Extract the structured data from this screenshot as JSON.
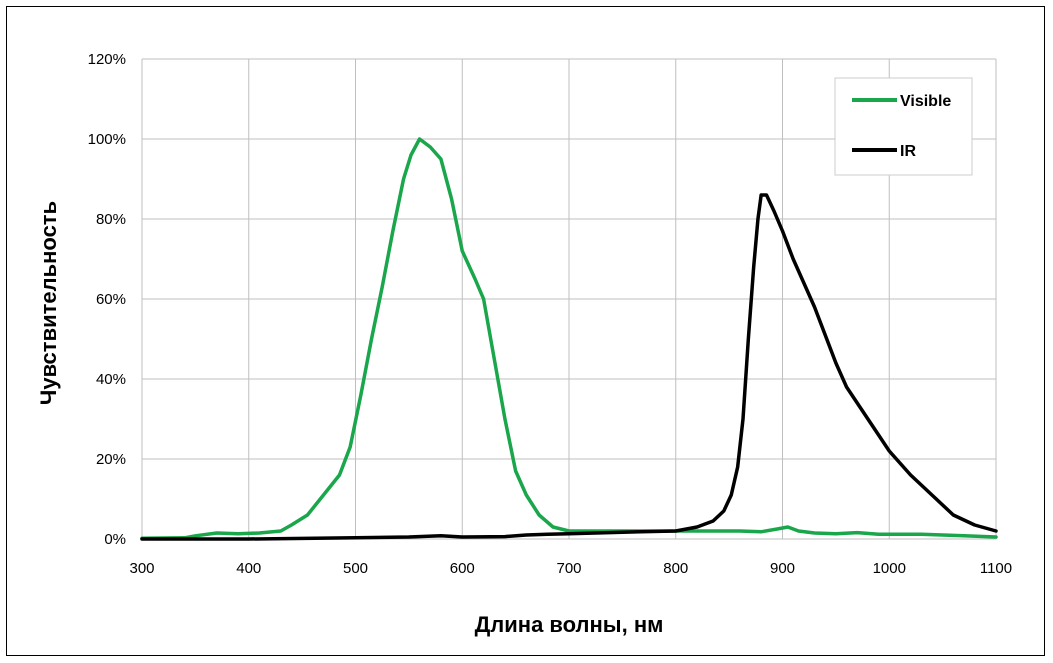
{
  "chart_data": {
    "type": "line",
    "title": "",
    "xlabel": "Длина волны, нм",
    "ylabel": "Чувствительность",
    "xlim": [
      300,
      1100
    ],
    "ylim": [
      0,
      120
    ],
    "x_ticks": [
      "300",
      "400",
      "500",
      "600",
      "700",
      "800",
      "900",
      "1000",
      "1100"
    ],
    "y_ticks": [
      "0%",
      "20%",
      "40%",
      "60%",
      "80%",
      "100%",
      "120%"
    ],
    "grid": true,
    "legend_position": "top-right",
    "series": [
      {
        "name": "Visible",
        "color": "#1aa64b",
        "points": [
          [
            300,
            0.2
          ],
          [
            340,
            0.3
          ],
          [
            350,
            0.8
          ],
          [
            370,
            1.5
          ],
          [
            390,
            1.3
          ],
          [
            410,
            1.5
          ],
          [
            430,
            2.0
          ],
          [
            440,
            3.5
          ],
          [
            455,
            6
          ],
          [
            470,
            11
          ],
          [
            485,
            16
          ],
          [
            495,
            23
          ],
          [
            505,
            36
          ],
          [
            515,
            50
          ],
          [
            525,
            63
          ],
          [
            535,
            77
          ],
          [
            545,
            90
          ],
          [
            552,
            96
          ],
          [
            560,
            100
          ],
          [
            570,
            98
          ],
          [
            580,
            95
          ],
          [
            590,
            85
          ],
          [
            600,
            72
          ],
          [
            612,
            65
          ],
          [
            620,
            60
          ],
          [
            630,
            45
          ],
          [
            640,
            30
          ],
          [
            650,
            17
          ],
          [
            660,
            11
          ],
          [
            672,
            6
          ],
          [
            685,
            3
          ],
          [
            700,
            2
          ],
          [
            720,
            2
          ],
          [
            760,
            2
          ],
          [
            800,
            2
          ],
          [
            840,
            2
          ],
          [
            860,
            2
          ],
          [
            880,
            1.8
          ],
          [
            895,
            2.5
          ],
          [
            905,
            3
          ],
          [
            915,
            2
          ],
          [
            930,
            1.5
          ],
          [
            950,
            1.3
          ],
          [
            970,
            1.6
          ],
          [
            990,
            1.2
          ],
          [
            1030,
            1.2
          ],
          [
            1070,
            0.8
          ],
          [
            1100,
            0.5
          ]
        ]
      },
      {
        "name": "IR",
        "color": "#000000",
        "points": [
          [
            300,
            0
          ],
          [
            400,
            0
          ],
          [
            500,
            0.3
          ],
          [
            550,
            0.5
          ],
          [
            580,
            0.8
          ],
          [
            600,
            0.5
          ],
          [
            640,
            0.6
          ],
          [
            660,
            1.0
          ],
          [
            680,
            1.2
          ],
          [
            700,
            1.3
          ],
          [
            750,
            1.7
          ],
          [
            800,
            2.0
          ],
          [
            820,
            3
          ],
          [
            835,
            4.5
          ],
          [
            845,
            7
          ],
          [
            852,
            11
          ],
          [
            858,
            18
          ],
          [
            863,
            30
          ],
          [
            868,
            50
          ],
          [
            873,
            68
          ],
          [
            877,
            80
          ],
          [
            880,
            86
          ],
          [
            885,
            86
          ],
          [
            892,
            82
          ],
          [
            900,
            77
          ],
          [
            910,
            70
          ],
          [
            920,
            64
          ],
          [
            930,
            58
          ],
          [
            940,
            51
          ],
          [
            950,
            44
          ],
          [
            960,
            38
          ],
          [
            975,
            32
          ],
          [
            990,
            26
          ],
          [
            1000,
            22
          ],
          [
            1020,
            16
          ],
          [
            1040,
            11
          ],
          [
            1060,
            6
          ],
          [
            1080,
            3.5
          ],
          [
            1100,
            2
          ]
        ]
      }
    ]
  }
}
